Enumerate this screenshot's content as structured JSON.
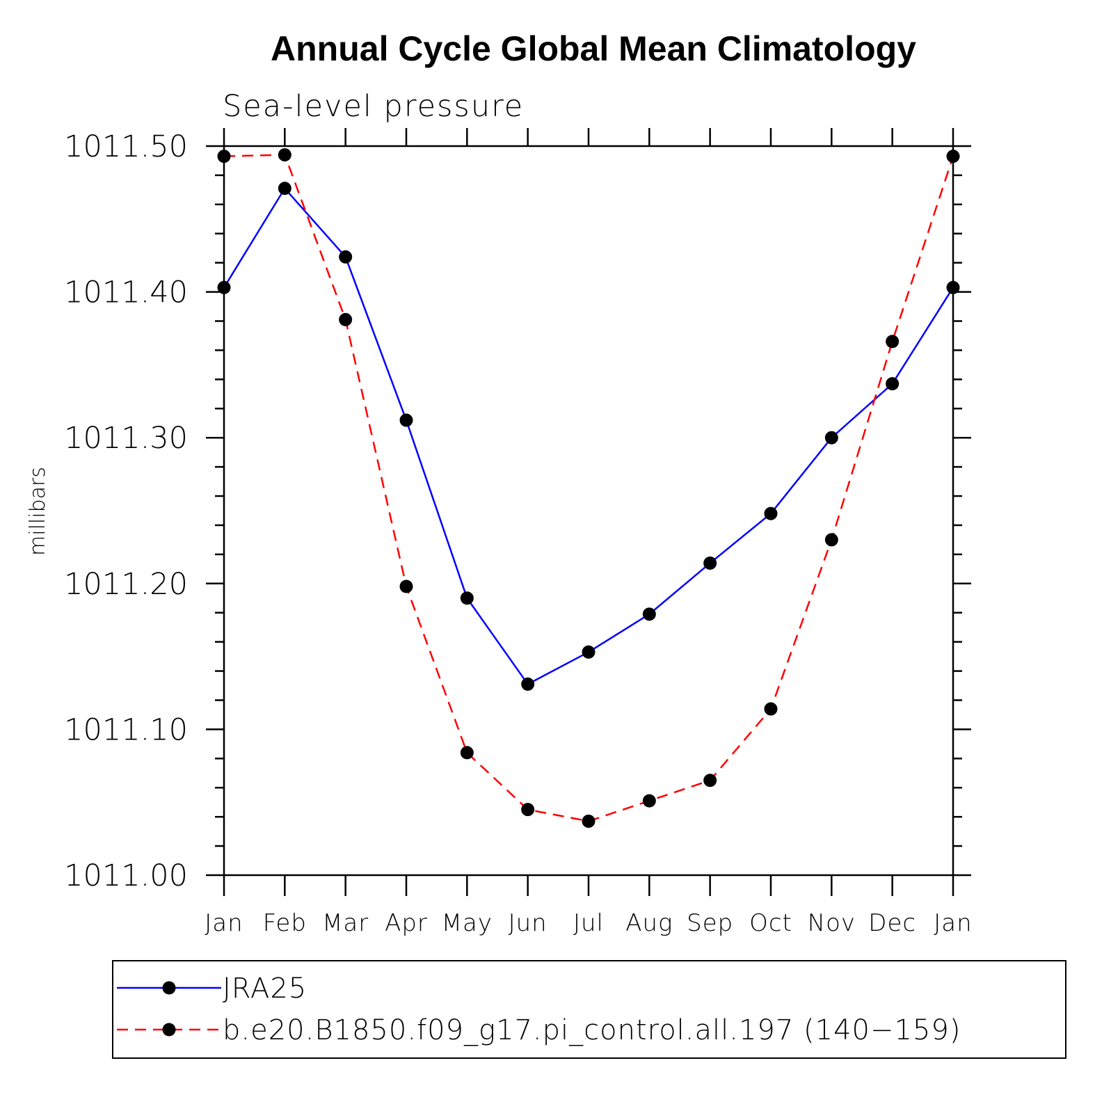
{
  "chart_data": {
    "type": "line",
    "title": "Annual Cycle Global Mean Climatology",
    "subtitle": "Sea-level pressure",
    "xlabel": "",
    "ylabel": "millibars",
    "categories": [
      "Jan",
      "Feb",
      "Mar",
      "Apr",
      "May",
      "Jun",
      "Jul",
      "Aug",
      "Sep",
      "Oct",
      "Nov",
      "Dec",
      "Jan"
    ],
    "ylim": [
      1011.0,
      1011.5
    ],
    "yticks": [
      1011.0,
      1011.1,
      1011.2,
      1011.3,
      1011.4,
      1011.5
    ],
    "ytick_labels": [
      "1011.00",
      "1011.10",
      "1011.20",
      "1011.30",
      "1011.40",
      "1011.50"
    ],
    "series": [
      {
        "name": "JRA25",
        "color": "#0000ff",
        "dash": "solid",
        "values": [
          1011.403,
          1011.471,
          1011.424,
          1011.312,
          1011.19,
          1011.131,
          1011.153,
          1011.179,
          1011.214,
          1011.248,
          1011.3,
          1011.337,
          1011.403
        ]
      },
      {
        "name": "b.e20.B1850.f09_g17.pi_control.all.197 (140−159)",
        "color": "#ff0000",
        "dash": "dashed",
        "values": [
          1011.493,
          1011.494,
          1011.381,
          1011.198,
          1011.084,
          1011.045,
          1011.037,
          1011.051,
          1011.065,
          1011.114,
          1011.23,
          1011.366,
          1011.493
        ]
      }
    ],
    "marker_color": "#000000",
    "grid": false,
    "legend_position": "bottom"
  }
}
